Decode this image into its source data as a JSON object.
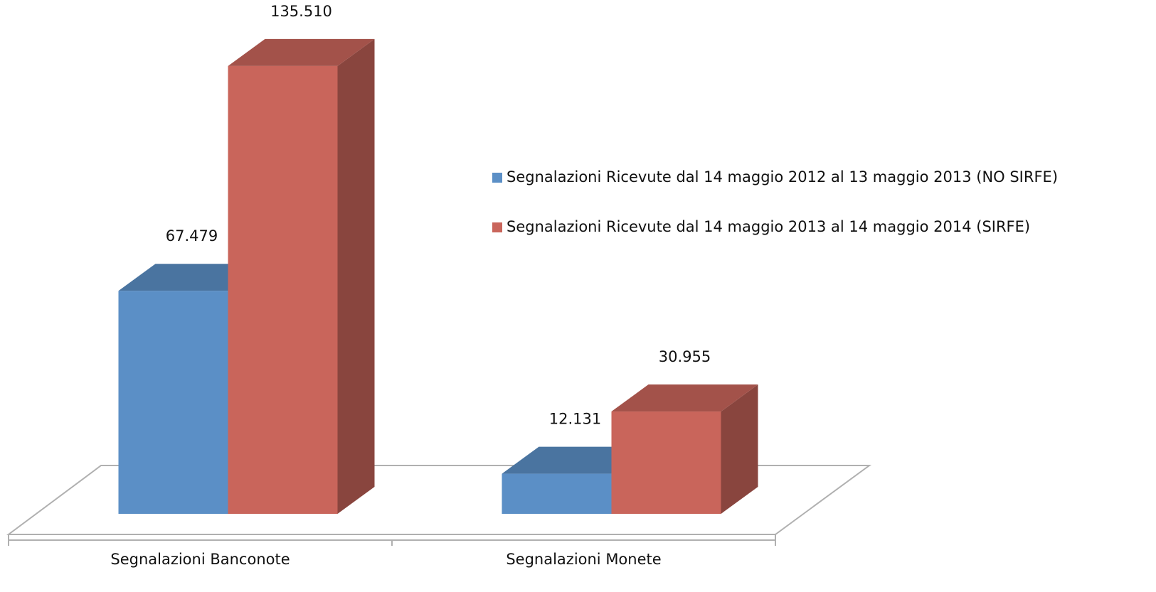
{
  "chart_data": {
    "type": "bar3d",
    "categories": [
      "Segnalazioni Banconote",
      "Segnalazioni Monete"
    ],
    "series": [
      {
        "name": "Segnalazioni Ricevute dal 14 maggio 2012 al 13 maggio 2013 (NO SIRFE)",
        "color": "#5b8fc6",
        "values": [
          67479,
          12131
        ],
        "value_labels": [
          "67.479",
          "12.131"
        ]
      },
      {
        "name": "Segnalazioni Ricevute dal 14 maggio 2013 al 14 maggio 2014 (SIRFE)",
        "color": "#c9655b",
        "values": [
          135510,
          30955
        ],
        "value_labels": [
          "135.510",
          "30.955"
        ]
      }
    ],
    "ylim": [
      0,
      140000
    ],
    "legend": "right"
  }
}
